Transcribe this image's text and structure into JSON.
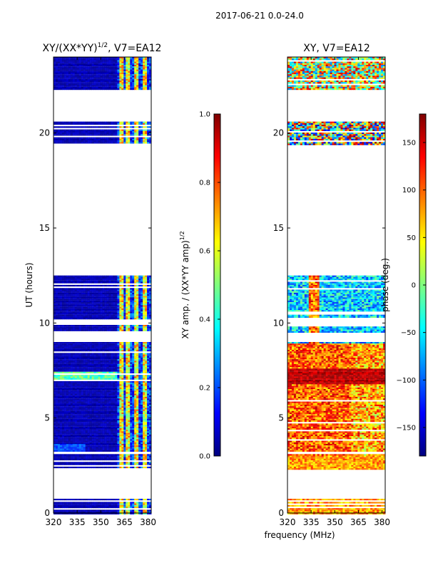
{
  "figure": {
    "suptitle": "2017-06-21 0.0-24.0",
    "shared_xlabel": "frequency (MHz)"
  },
  "colors": {
    "jet": [
      "#00007f",
      "#0000ff",
      "#007fff",
      "#00ffff",
      "#7fff7f",
      "#ffff00",
      "#ff7f00",
      "#ff0000",
      "#7f0000"
    ],
    "frame": "#000000",
    "background": "#ffffff"
  },
  "chart_data": [
    {
      "type": "heatmap",
      "title": "XY/(XX*YY)^1/2, V7=EA12",
      "title_main": "XY/(XX*YY)",
      "title_sup": "1/2",
      "title_tail": ", V7=EA12",
      "xlabel": "",
      "ylabel": "UT (hours)",
      "xlim": [
        320,
        382
      ],
      "ylim": [
        0,
        24
      ],
      "xticks": [
        320,
        335,
        350,
        365,
        380
      ],
      "xtick_labels": [
        "320",
        "335",
        "350",
        "365",
        "380"
      ],
      "yticks": [
        0,
        5,
        10,
        15,
        20
      ],
      "ytick_labels": [
        "0",
        "5",
        "10",
        "15",
        "20"
      ],
      "colorbar": {
        "label_main": "XY amp. / (XX*YY amp)",
        "label_sup": "1/2",
        "label": "XY amp. / (XX*YY amp)^1/2",
        "range": [
          0.0,
          1.0
        ],
        "ticks": [
          0.0,
          0.2,
          0.4,
          0.6,
          0.8,
          1.0
        ],
        "tick_labels": [
          "0.0",
          "0.2",
          "0.4",
          "0.6",
          "0.8",
          "1.0"
        ]
      },
      "data_time_ranges_hours": [
        [
          0.0,
          0.75
        ],
        [
          2.3,
          3.1
        ],
        [
          3.3,
          9.0
        ],
        [
          9.5,
          9.9
        ],
        [
          10.2,
          12.5
        ],
        [
          19.4,
          20.6
        ],
        [
          22.3,
          24.0
        ]
      ],
      "flagged_columns_mhz": [
        [
          360,
          382
        ]
      ],
      "description": "Mostly low amplitude (dark blue) at 320-360 MHz; broadband RFI with higher amplitude near 365-382 MHz; bright band near 7.2 h"
    },
    {
      "type": "heatmap",
      "title": "XY, V7=EA12",
      "xlabel": "frequency (MHz)",
      "ylabel": "",
      "xlim": [
        320,
        382
      ],
      "ylim": [
        0,
        24
      ],
      "xticks": [
        320,
        335,
        350,
        365,
        380
      ],
      "xtick_labels": [
        "320",
        "335",
        "350",
        "365",
        "380"
      ],
      "yticks": [
        0,
        5,
        10,
        15,
        20
      ],
      "ytick_labels": [
        "0",
        "5",
        "10",
        "15",
        "20"
      ],
      "colorbar": {
        "label": "phase (deg.)",
        "range": [
          -180,
          180
        ],
        "ticks": [
          -150,
          -100,
          -50,
          0,
          50,
          100,
          150
        ],
        "tick_labels": [
          "−150",
          "−100",
          "−50",
          "0",
          "50",
          "100",
          "150"
        ]
      },
      "data_time_ranges_hours": [
        [
          0.0,
          0.75
        ],
        [
          2.3,
          3.1
        ],
        [
          3.3,
          9.0
        ],
        [
          9.5,
          9.9
        ],
        [
          10.2,
          12.5
        ],
        [
          19.4,
          20.6
        ],
        [
          22.3,
          24.0
        ]
      ],
      "description": "Phase varies across all values; mostly positive phase (orange/red) around 3-8 h, blue/negative around 10-12 h"
    }
  ]
}
